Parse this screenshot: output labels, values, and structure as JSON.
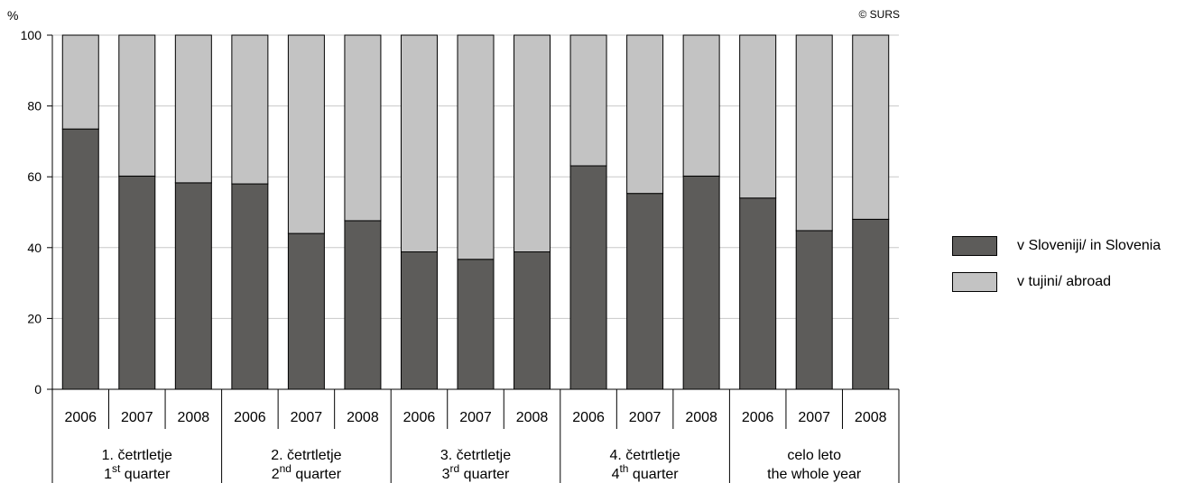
{
  "copyright": "© SURS",
  "chart_data": {
    "type": "bar",
    "stacked": true,
    "ylabel": "%",
    "ylim": [
      0,
      100
    ],
    "yticks": [
      0,
      20,
      40,
      60,
      80,
      100
    ],
    "grid": true,
    "legend_position": "right",
    "categories": [
      "2006",
      "2007",
      "2008",
      "2006",
      "2007",
      "2008",
      "2006",
      "2007",
      "2008",
      "2006",
      "2007",
      "2008",
      "2006",
      "2007",
      "2008"
    ],
    "groups": [
      {
        "line1": "1. četrtletje",
        "line2_num": "1",
        "line2_sup": "st",
        "line2_text": "quarter"
      },
      {
        "line1": "2. četrtletje",
        "line2_num": "2",
        "line2_sup": "nd",
        "line2_text": "quarter"
      },
      {
        "line1": "3. četrtletje",
        "line2_num": "3",
        "line2_sup": "rd",
        "line2_text": "quarter"
      },
      {
        "line1": "4. četrtletje",
        "line2_num": "4",
        "line2_sup": "th",
        "line2_text": "quarter"
      },
      {
        "line1": "celo leto",
        "line2_num": "",
        "line2_sup": "",
        "line2_text": "the whole year"
      }
    ],
    "series": [
      {
        "name": "v Sloveniji/ in Slovenia",
        "color": "#5d5c5a",
        "values": [
          73.5,
          60.2,
          58.3,
          58.0,
          44.0,
          47.6,
          38.8,
          36.7,
          38.8,
          63.1,
          55.3,
          60.2,
          54.0,
          44.8,
          48.0
        ]
      },
      {
        "name": "v tujini/ abroad",
        "color": "#c3c3c3",
        "values": [
          26.5,
          39.8,
          41.7,
          42.0,
          56.0,
          52.4,
          61.2,
          63.3,
          61.2,
          36.9,
          44.7,
          39.8,
          46.0,
          55.2,
          52.0
        ]
      }
    ]
  }
}
